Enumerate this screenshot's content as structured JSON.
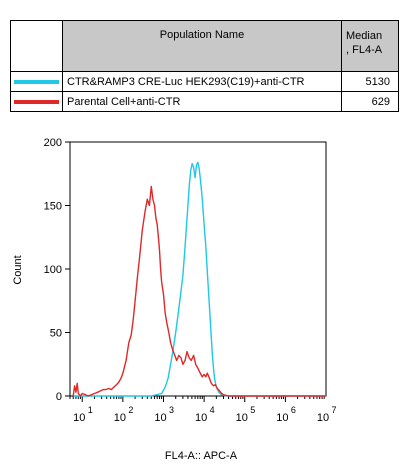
{
  "table": {
    "header": {
      "population": "Population Name",
      "median": "Median\n, FL4-A"
    },
    "rows": [
      {
        "color": "#1ec8e6",
        "name": "CTR&RAMP3 CRE-Luc HEK293(C19)+anti-CTR",
        "median": "5130"
      },
      {
        "color": "#e02828",
        "name": "Parental Cell+anti-CTR",
        "median": "629"
      }
    ]
  },
  "chart_data": {
    "type": "line",
    "xlabel": "FL4-A:: APC-A",
    "ylabel": "Count",
    "x_scale": "log",
    "xlim": [
      5,
      10000000
    ],
    "ylim": [
      0,
      200
    ],
    "yticks": [
      0,
      50,
      100,
      150,
      200
    ],
    "xticks": [
      {
        "value": 10,
        "base": "10",
        "exp": "1"
      },
      {
        "value": 100,
        "base": "10",
        "exp": "2"
      },
      {
        "value": 1000,
        "base": "10",
        "exp": "3"
      },
      {
        "value": 10000,
        "base": "10",
        "exp": "4"
      },
      {
        "value": 100000,
        "base": "10",
        "exp": "5"
      },
      {
        "value": 1000000,
        "base": "10",
        "exp": "6"
      },
      {
        "value": 10000000,
        "base": "10",
        "exp": "7"
      }
    ],
    "series": [
      {
        "name": "CTR&RAMP3 CRE-Luc HEK293(C19)+anti-CTR",
        "color": "#1ec8e6",
        "x": [
          6,
          500,
          900,
          1100,
          1300,
          1500,
          1700,
          2000,
          2300,
          2600,
          3000,
          3400,
          3700,
          4000,
          4300,
          4700,
          5100,
          5500,
          6000,
          6500,
          7000,
          7500,
          8000,
          8500,
          9000,
          9500,
          10000,
          11000,
          12000,
          13000,
          14000,
          15000,
          16000,
          17000,
          18000,
          20000,
          23000,
          27000,
          35000,
          100000,
          10000000
        ],
        "y": [
          0,
          0,
          2,
          7,
          14,
          25,
          35,
          50,
          65,
          78,
          95,
          118,
          135,
          150,
          165,
          178,
          183,
          180,
          172,
          182,
          184,
          180,
          172,
          164,
          155,
          145,
          135,
          118,
          98,
          80,
          62,
          46,
          32,
          22,
          14,
          7,
          3,
          1,
          0,
          0,
          0
        ]
      },
      {
        "name": "Parental Cell+anti-CTR",
        "color": "#e02828",
        "x": [
          6,
          6.5,
          7,
          7.5,
          8,
          8.5,
          9,
          10,
          12,
          14,
          17,
          20,
          24,
          28,
          33,
          38,
          45,
          52,
          60,
          70,
          80,
          90,
          100,
          120,
          140,
          160,
          180,
          200,
          230,
          260,
          300,
          350,
          400,
          450,
          500,
          550,
          600,
          650,
          700,
          750,
          800,
          850,
          900,
          1000,
          1100,
          1200,
          1350,
          1500,
          1700,
          1900,
          2100,
          2400,
          2700,
          3000,
          3400,
          3800,
          4300,
          4800,
          5500,
          6200,
          7000,
          8000,
          9000,
          10000,
          11000,
          12000,
          13500,
          15000,
          17000,
          19000,
          21000,
          24000,
          27000,
          30000,
          40000,
          10000000
        ],
        "y": [
          0,
          8,
          3,
          10,
          2,
          1,
          0,
          2,
          1,
          0,
          1,
          2,
          3,
          4,
          5,
          5,
          6,
          5,
          7,
          9,
          11,
          14,
          18,
          28,
          42,
          48,
          60,
          75,
          95,
          110,
          130,
          145,
          155,
          150,
          165,
          155,
          150,
          140,
          135,
          125,
          115,
          100,
          90,
          80,
          65,
          58,
          50,
          42,
          36,
          32,
          28,
          32,
          30,
          25,
          28,
          35,
          30,
          28,
          32,
          25,
          22,
          18,
          15,
          17,
          15,
          18,
          14,
          10,
          8,
          9,
          6,
          4,
          2,
          1,
          0,
          0
        ]
      }
    ]
  }
}
